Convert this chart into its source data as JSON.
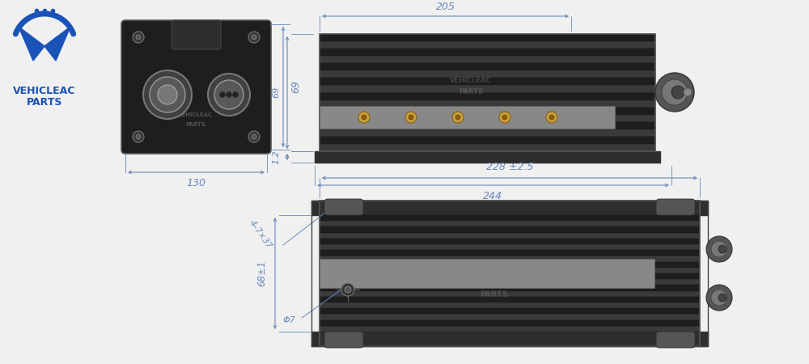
{
  "bg_color": "#f0f0f0",
  "logo_color": "#1a52b8",
  "dim_color": "#6688bb",
  "lc": "#222222",
  "dark": "#1e1e1e",
  "dark2": "#2e2e2e",
  "dark3": "#3a3a3a",
  "dark4": "#484848",
  "gray_strip": "#888888",
  "gray_strip2": "#aaaaaa",
  "dim_205": "205",
  "dim_244": "244",
  "dim_130": "130",
  "dim_68": "69",
  "dim_12": "1.2",
  "dim_228": "228 ±2.5",
  "dim_4_7x37": "4–7×37",
  "dim_phi7": "Φ7",
  "dim_68_1": "68±1"
}
